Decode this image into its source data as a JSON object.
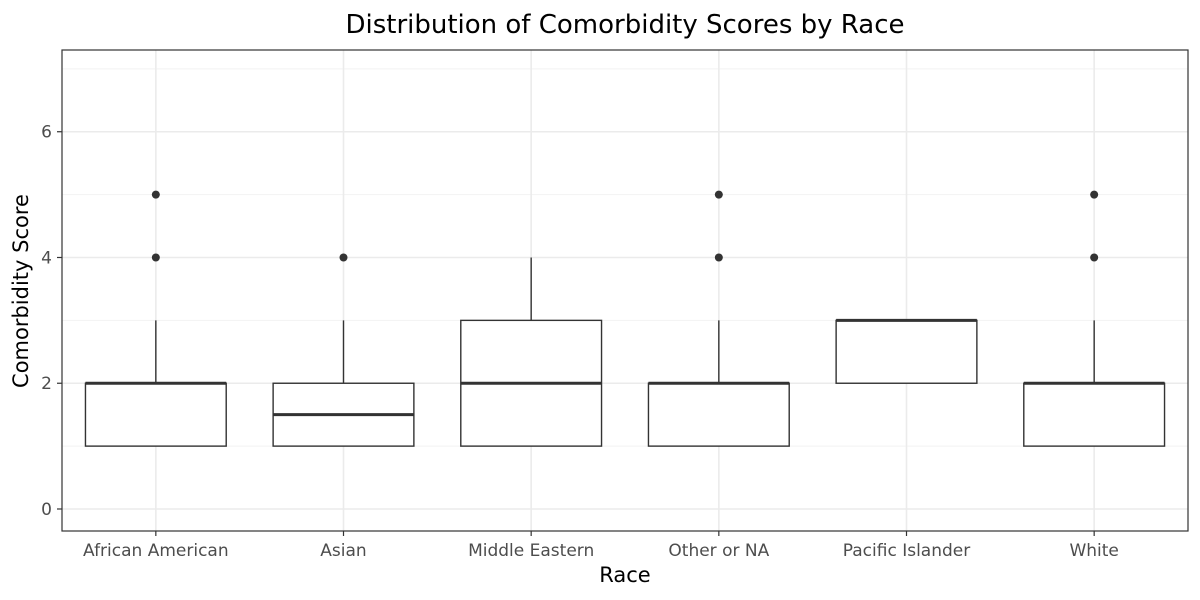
{
  "chart_data": {
    "type": "boxplot",
    "title": "Distribution of Comorbidity Scores by Race",
    "xlabel": "Race",
    "ylabel": "Comorbidity Score",
    "ylim": [
      -0.35,
      7.3
    ],
    "yticks": [
      0,
      2,
      4,
      6
    ],
    "grid": true,
    "categories": [
      "African American",
      "Asian",
      "Middle Eastern",
      "Other or NA",
      "Pacific Islander",
      "White"
    ],
    "boxes": [
      {
        "category": "African American",
        "lower_whisker": 1,
        "q1": 1,
        "median": 2,
        "q3": 2,
        "upper_whisker": 3,
        "outliers": [
          4,
          5
        ]
      },
      {
        "category": "Asian",
        "lower_whisker": 1,
        "q1": 1,
        "median": 1.5,
        "q3": 2,
        "upper_whisker": 3,
        "outliers": [
          4
        ]
      },
      {
        "category": "Middle Eastern",
        "lower_whisker": 1,
        "q1": 1,
        "median": 2,
        "q3": 3,
        "upper_whisker": 4,
        "outliers": []
      },
      {
        "category": "Other or NA",
        "lower_whisker": 1,
        "q1": 1,
        "median": 2,
        "q3": 2,
        "upper_whisker": 3,
        "outliers": [
          4,
          5
        ]
      },
      {
        "category": "Pacific Islander",
        "lower_whisker": 2,
        "q1": 2,
        "median": 3,
        "q3": 3,
        "upper_whisker": 3,
        "outliers": []
      },
      {
        "category": "White",
        "lower_whisker": 1,
        "q1": 1,
        "median": 2,
        "q3": 2,
        "upper_whisker": 3,
        "outliers": [
          4,
          5
        ]
      }
    ]
  }
}
